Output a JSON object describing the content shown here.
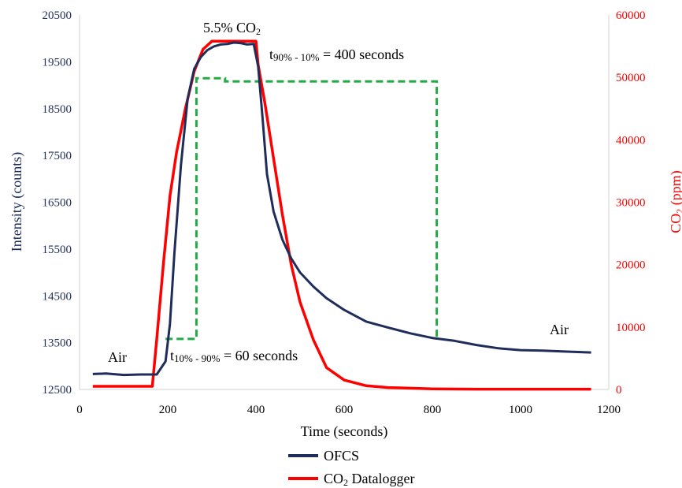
{
  "chart_data": {
    "type": "line",
    "xlabel": "Time (seconds)",
    "ylabel_left": "Intensity (counts)",
    "ylabel_right_main": "CO",
    "ylabel_right_sub": "2",
    "ylabel_right_tail": " (ppm)",
    "xlim": [
      0,
      1200
    ],
    "xticks": [
      "0",
      "200",
      "400",
      "600",
      "800",
      "1000",
      "1200"
    ],
    "ylim_left": [
      12500,
      20500
    ],
    "yticks_left": [
      "12500",
      "13500",
      "14500",
      "15500",
      "16500",
      "17500",
      "18500",
      "19500",
      "20500"
    ],
    "ylim_right": [
      0,
      60000
    ],
    "yticks_right": [
      "0",
      "10000",
      "20000",
      "30000",
      "40000",
      "50000",
      "60000"
    ],
    "grid": false,
    "legend_position": "bottom",
    "colors": {
      "ofcs": "#1f2d5a",
      "datalogger": "#ff0000",
      "guide": "#22aa44"
    },
    "annotations": {
      "co2_level_main": "5.5% CO",
      "co2_level_sub": "2",
      "air_left": "Air",
      "air_right": "Air",
      "t_rise_prefix": "t",
      "t_rise_sub": "10% - 90%",
      "t_rise_suffix": " = 60 seconds",
      "t_fall_prefix": "t",
      "t_fall_sub": "90% - 10%",
      "t_fall_suffix": " = 400 seconds"
    },
    "series": [
      {
        "name": "OFCS",
        "axis": "left",
        "x": [
          30,
          60,
          100,
          140,
          175,
          195,
          205,
          215,
          230,
          245,
          260,
          275,
          290,
          305,
          320,
          335,
          350,
          365,
          380,
          395,
          405,
          415,
          425,
          440,
          460,
          480,
          500,
          530,
          560,
          600,
          650,
          700,
          750,
          800,
          850,
          900,
          950,
          1000,
          1050,
          1100,
          1160
        ],
        "y": [
          12830,
          12840,
          12810,
          12820,
          12820,
          13100,
          13900,
          15400,
          17300,
          18700,
          19350,
          19600,
          19750,
          19830,
          19870,
          19880,
          19910,
          19900,
          19870,
          19880,
          19400,
          18300,
          17100,
          16300,
          15700,
          15300,
          15000,
          14700,
          14450,
          14200,
          13950,
          13820,
          13700,
          13600,
          13540,
          13450,
          13380,
          13340,
          13330,
          13310,
          13290
        ]
      },
      {
        "name": "CO",
        "name_sub": "2",
        "name_tail": " Datalogger",
        "axis": "right",
        "x": [
          30,
          165,
          175,
          190,
          205,
          220,
          240,
          260,
          280,
          300,
          400,
          405,
          420,
          440,
          460,
          480,
          500,
          530,
          560,
          600,
          650,
          700,
          800,
          900,
          1000,
          1100,
          1160
        ],
        "y": [
          500,
          500,
          8000,
          20000,
          31000,
          38000,
          45000,
          51000,
          54500,
          55800,
          55800,
          52000,
          46000,
          37000,
          28000,
          20000,
          14000,
          8000,
          3500,
          1500,
          600,
          300,
          100,
          50,
          50,
          50,
          50
        ]
      }
    ],
    "guide_line": {
      "x": [
        195,
        265,
        265,
        330,
        330,
        810,
        810
      ],
      "y_left": [
        13580,
        13580,
        19150,
        19150,
        19080,
        19080,
        13580
      ]
    }
  }
}
